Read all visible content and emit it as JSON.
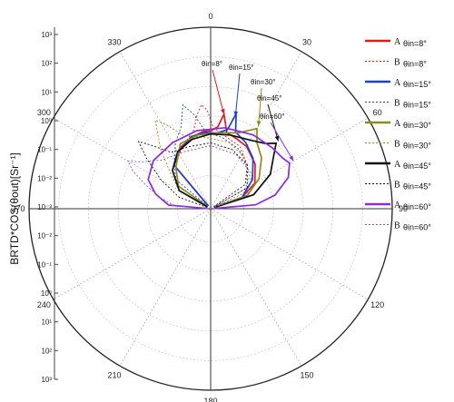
{
  "chart_data": {
    "type": "polar",
    "ylabel": "BRTD*COS(θout)[Sr⁻¹]",
    "radial_axis": {
      "scale": "log",
      "tick_labels": [
        "10³",
        "10²",
        "10¹",
        "10⁰",
        "10⁻¹",
        "10⁻²",
        "10⁻³",
        "10⁻²",
        "10⁻¹",
        "10⁰",
        "10¹",
        "10²",
        "10³"
      ]
    },
    "angle_labels": [
      "0",
      "30",
      "60",
      "90",
      "120",
      "150",
      "180",
      "210",
      "240",
      "270",
      "300",
      "330"
    ],
    "annotations": [
      "θin=8°",
      "θin=15°",
      "θin=30°",
      "θin=45°",
      "θin=60°"
    ],
    "legend": [
      {
        "sample": "A",
        "label": "θin=8°",
        "color": "#e31a1c",
        "style": "solid"
      },
      {
        "sample": "B",
        "label": "θin=8°",
        "color": "#e31a1c",
        "style": "dashed"
      },
      {
        "sample": "A",
        "label": "θin=15°",
        "color": "#1f3fd6",
        "style": "solid"
      },
      {
        "sample": "B",
        "label": "θin=15°",
        "color": "#1f3fd6",
        "style": "dashed"
      },
      {
        "sample": "A",
        "label": "θin=30°",
        "color": "#8c8c1a",
        "style": "solid"
      },
      {
        "sample": "B",
        "label": "θin=30°",
        "color": "#8c8c1a",
        "style": "dashed"
      },
      {
        "sample": "A",
        "label": "θin=45°",
        "color": "#111111",
        "style": "solid"
      },
      {
        "sample": "B",
        "label": "θin=45°",
        "color": "#111111",
        "style": "dashed"
      },
      {
        "sample": "A",
        "label": "θin=60°",
        "color": "#8a2be2",
        "style": "solid"
      },
      {
        "sample": "B",
        "label": "θin=60°",
        "color": "#7b54d6",
        "style": "dashed"
      }
    ],
    "series": [
      {
        "color": "#e31a1c",
        "style": "solid",
        "points": [
          [
            -40,
            -1.2
          ],
          [
            -25,
            -0.8
          ],
          [
            -12,
            -0.6
          ],
          [
            -5,
            -0.5
          ],
          [
            0,
            -0.5
          ],
          [
            5,
            -0.35
          ],
          [
            8,
            0.1
          ],
          [
            12,
            -0.5
          ],
          [
            20,
            -0.6
          ],
          [
            30,
            -0.7
          ],
          [
            45,
            -1.0
          ],
          [
            60,
            -1.4
          ],
          [
            70,
            -2.0
          ]
        ]
      },
      {
        "color": "#e31a1c",
        "style": "dashed",
        "points": [
          [
            -40,
            -1.3
          ],
          [
            -30,
            -1.0
          ],
          [
            -20,
            -0.7
          ],
          [
            -12,
            -0.4
          ],
          [
            -8,
            0.1
          ],
          [
            -5,
            0.4
          ],
          [
            -2,
            0.2
          ],
          [
            2,
            -0.4
          ],
          [
            10,
            -0.6
          ],
          [
            25,
            -0.8
          ],
          [
            40,
            -1.2
          ],
          [
            55,
            -1.7
          ]
        ]
      },
      {
        "color": "#1f3fd6",
        "style": "solid",
        "points": [
          [
            -40,
            -1.2
          ],
          [
            -28,
            -0.9
          ],
          [
            -15,
            -0.6
          ],
          [
            -5,
            -0.55
          ],
          [
            5,
            -0.55
          ],
          [
            12,
            -0.4
          ],
          [
            15,
            0.2
          ],
          [
            18,
            -0.4
          ],
          [
            28,
            -0.6
          ],
          [
            40,
            -0.9
          ],
          [
            55,
            -1.4
          ],
          [
            70,
            -2.0
          ]
        ]
      },
      {
        "color": "#1f3fd6",
        "style": "dashed",
        "points": [
          [
            -50,
            -1.6
          ],
          [
            -40,
            -1.2
          ],
          [
            -28,
            -0.6
          ],
          [
            -20,
            -0.2
          ],
          [
            -15,
            0.5
          ],
          [
            -10,
            0.1
          ],
          [
            -4,
            -0.5
          ],
          [
            10,
            -0.7
          ],
          [
            25,
            -0.9
          ],
          [
            40,
            -1.2
          ],
          [
            55,
            -1.7
          ]
        ]
      },
      {
        "color": "#8c8c1a",
        "style": "solid",
        "points": [
          [
            -55,
            -1.8
          ],
          [
            -40,
            -1.3
          ],
          [
            -25,
            -0.7
          ],
          [
            -10,
            -0.6
          ],
          [
            5,
            -0.55
          ],
          [
            20,
            -0.4
          ],
          [
            30,
            0.0
          ],
          [
            35,
            -0.4
          ],
          [
            45,
            -0.7
          ],
          [
            58,
            -1.2
          ],
          [
            70,
            -1.8
          ]
        ]
      },
      {
        "color": "#8c8c1a",
        "style": "dashed",
        "points": [
          [
            -60,
            -1.9
          ],
          [
            -50,
            -1.4
          ],
          [
            -40,
            -0.5
          ],
          [
            -32,
            0.4
          ],
          [
            -28,
            0.1
          ],
          [
            -20,
            -0.5
          ],
          [
            -5,
            -0.7
          ],
          [
            15,
            -0.8
          ],
          [
            30,
            -1.0
          ],
          [
            50,
            -1.4
          ],
          [
            65,
            -1.9
          ]
        ]
      },
      {
        "color": "#111111",
        "style": "solid",
        "points": [
          [
            -60,
            -1.9
          ],
          [
            -45,
            -1.3
          ],
          [
            -30,
            -0.9
          ],
          [
            -15,
            -0.7
          ],
          [
            0,
            -0.6
          ],
          [
            15,
            -0.55
          ],
          [
            30,
            -0.45
          ],
          [
            40,
            -0.25
          ],
          [
            45,
            0.0
          ],
          [
            50,
            -0.35
          ],
          [
            60,
            -0.8
          ],
          [
            72,
            -1.6
          ]
        ]
      },
      {
        "color": "#111111",
        "style": "dashed",
        "points": [
          [
            -70,
            -2.0
          ],
          [
            -60,
            -1.2
          ],
          [
            -52,
            -0.4
          ],
          [
            -47,
            0.2
          ],
          [
            -43,
            -0.2
          ],
          [
            -35,
            -0.8
          ],
          [
            -20,
            -0.9
          ],
          [
            0,
            -0.9
          ],
          [
            20,
            -1.0
          ],
          [
            40,
            -1.2
          ],
          [
            60,
            -1.7
          ]
        ]
      },
      {
        "color": "#8a2be2",
        "style": "solid",
        "points": [
          [
            -85,
            -1.7
          ],
          [
            -75,
            -1.2
          ],
          [
            -65,
            -0.8
          ],
          [
            -50,
            -0.6
          ],
          [
            -30,
            -0.55
          ],
          [
            -10,
            -0.45
          ],
          [
            10,
            -0.35
          ],
          [
            30,
            -0.25
          ],
          [
            45,
            -0.2
          ],
          [
            55,
            -0.15
          ],
          [
            60,
            -0.05
          ],
          [
            68,
            -0.3
          ],
          [
            78,
            -0.9
          ],
          [
            85,
            -1.6
          ]
        ]
      },
      {
        "color": "#7b54d6",
        "style": "dashed",
        "points": [
          [
            -85,
            -1.9
          ],
          [
            -78,
            -1.4
          ],
          [
            -70,
            -0.8
          ],
          [
            -64,
            -0.2
          ],
          [
            -60,
            0.1
          ],
          [
            -56,
            -0.3
          ],
          [
            -45,
            -0.8
          ],
          [
            -25,
            -1.0
          ],
          [
            0,
            -1.0
          ],
          [
            25,
            -1.1
          ],
          [
            50,
            -1.3
          ],
          [
            70,
            -1.8
          ]
        ]
      }
    ]
  }
}
